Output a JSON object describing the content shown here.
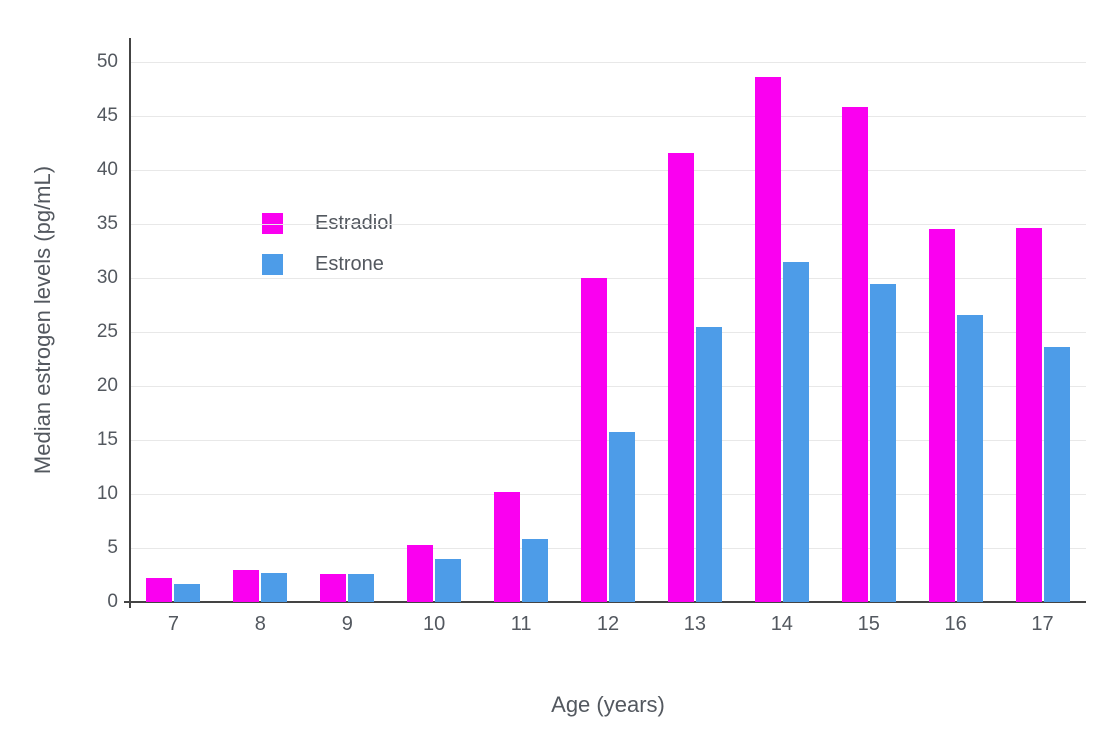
{
  "chart_data": {
    "type": "bar",
    "title": "",
    "xlabel": "Age (years)",
    "ylabel": "Median estrogen levels (pg/mL)",
    "categories": [
      7,
      8,
      9,
      10,
      11,
      12,
      13,
      14,
      15,
      16,
      17
    ],
    "series": [
      {
        "name": "Estradiol",
        "color": "#fa00f0",
        "values": [
          2.2,
          3.0,
          2.6,
          5.3,
          10.2,
          30.0,
          41.6,
          48.6,
          45.8,
          34.5,
          34.6
        ]
      },
      {
        "name": "Estrone",
        "color": "#4d9ce8",
        "values": [
          1.7,
          2.7,
          2.6,
          4.0,
          5.8,
          15.7,
          25.5,
          31.5,
          29.4,
          26.6,
          23.6
        ]
      }
    ],
    "ylim": [
      0,
      50
    ],
    "yticks": [
      0,
      5,
      10,
      15,
      20,
      25,
      30,
      35,
      40,
      45,
      50
    ],
    "grid": true,
    "legend_position": "inside-top-left",
    "background": "#ffffff",
    "gridline_color": "#e8e8e8",
    "axis_line_color": "#444444",
    "label_color": "#53585f"
  }
}
